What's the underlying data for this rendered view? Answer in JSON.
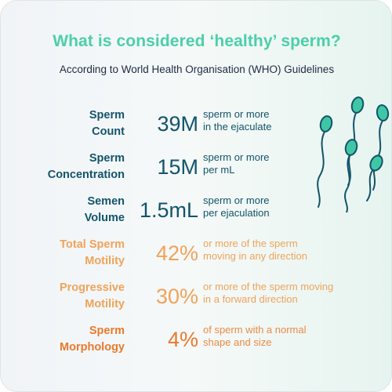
{
  "title": "What is considered ‘healthy’ sperm?",
  "subtitle": "According to World Health Organisation (WHO) Guidelines",
  "colors": {
    "title": "#4ccfaa",
    "teal": "#12546a",
    "amber": "#f0a35a",
    "orange": "#e97a2c",
    "sperm_head": "#3fc7a5"
  },
  "metrics": [
    {
      "label_line1": "Sperm",
      "label_line2": "Count",
      "value": "39M",
      "desc_line1": "sperm or more",
      "desc_line2": "in the ejaculate"
    },
    {
      "label_line1": "Sperm",
      "label_line2": "Concentration",
      "value": "15M",
      "desc_line1": "sperm or more",
      "desc_line2": "per mL"
    },
    {
      "label_line1": "Semen",
      "label_line2": "Volume",
      "value": "1.5mL",
      "desc_line1": "sperm or more",
      "desc_line2": "per ejaculation"
    },
    {
      "label_line1": "Total Sperm",
      "label_line2": "Motility",
      "value": "42%",
      "desc_line1": "or more of the sperm",
      "desc_line2": "moving in any direction"
    },
    {
      "label_line1": "Progressive",
      "label_line2": "Motility",
      "value": "30%",
      "desc_line1": "or more of the sperm moving",
      "desc_line2": "in a forward direction"
    },
    {
      "label_line1": "Sperm",
      "label_line2": "Morphology",
      "value": "4%",
      "desc_line1": "of sperm with a normal",
      "desc_line2": "shape and size"
    }
  ],
  "decoration": {
    "icon": "sperm-cells-icon"
  }
}
